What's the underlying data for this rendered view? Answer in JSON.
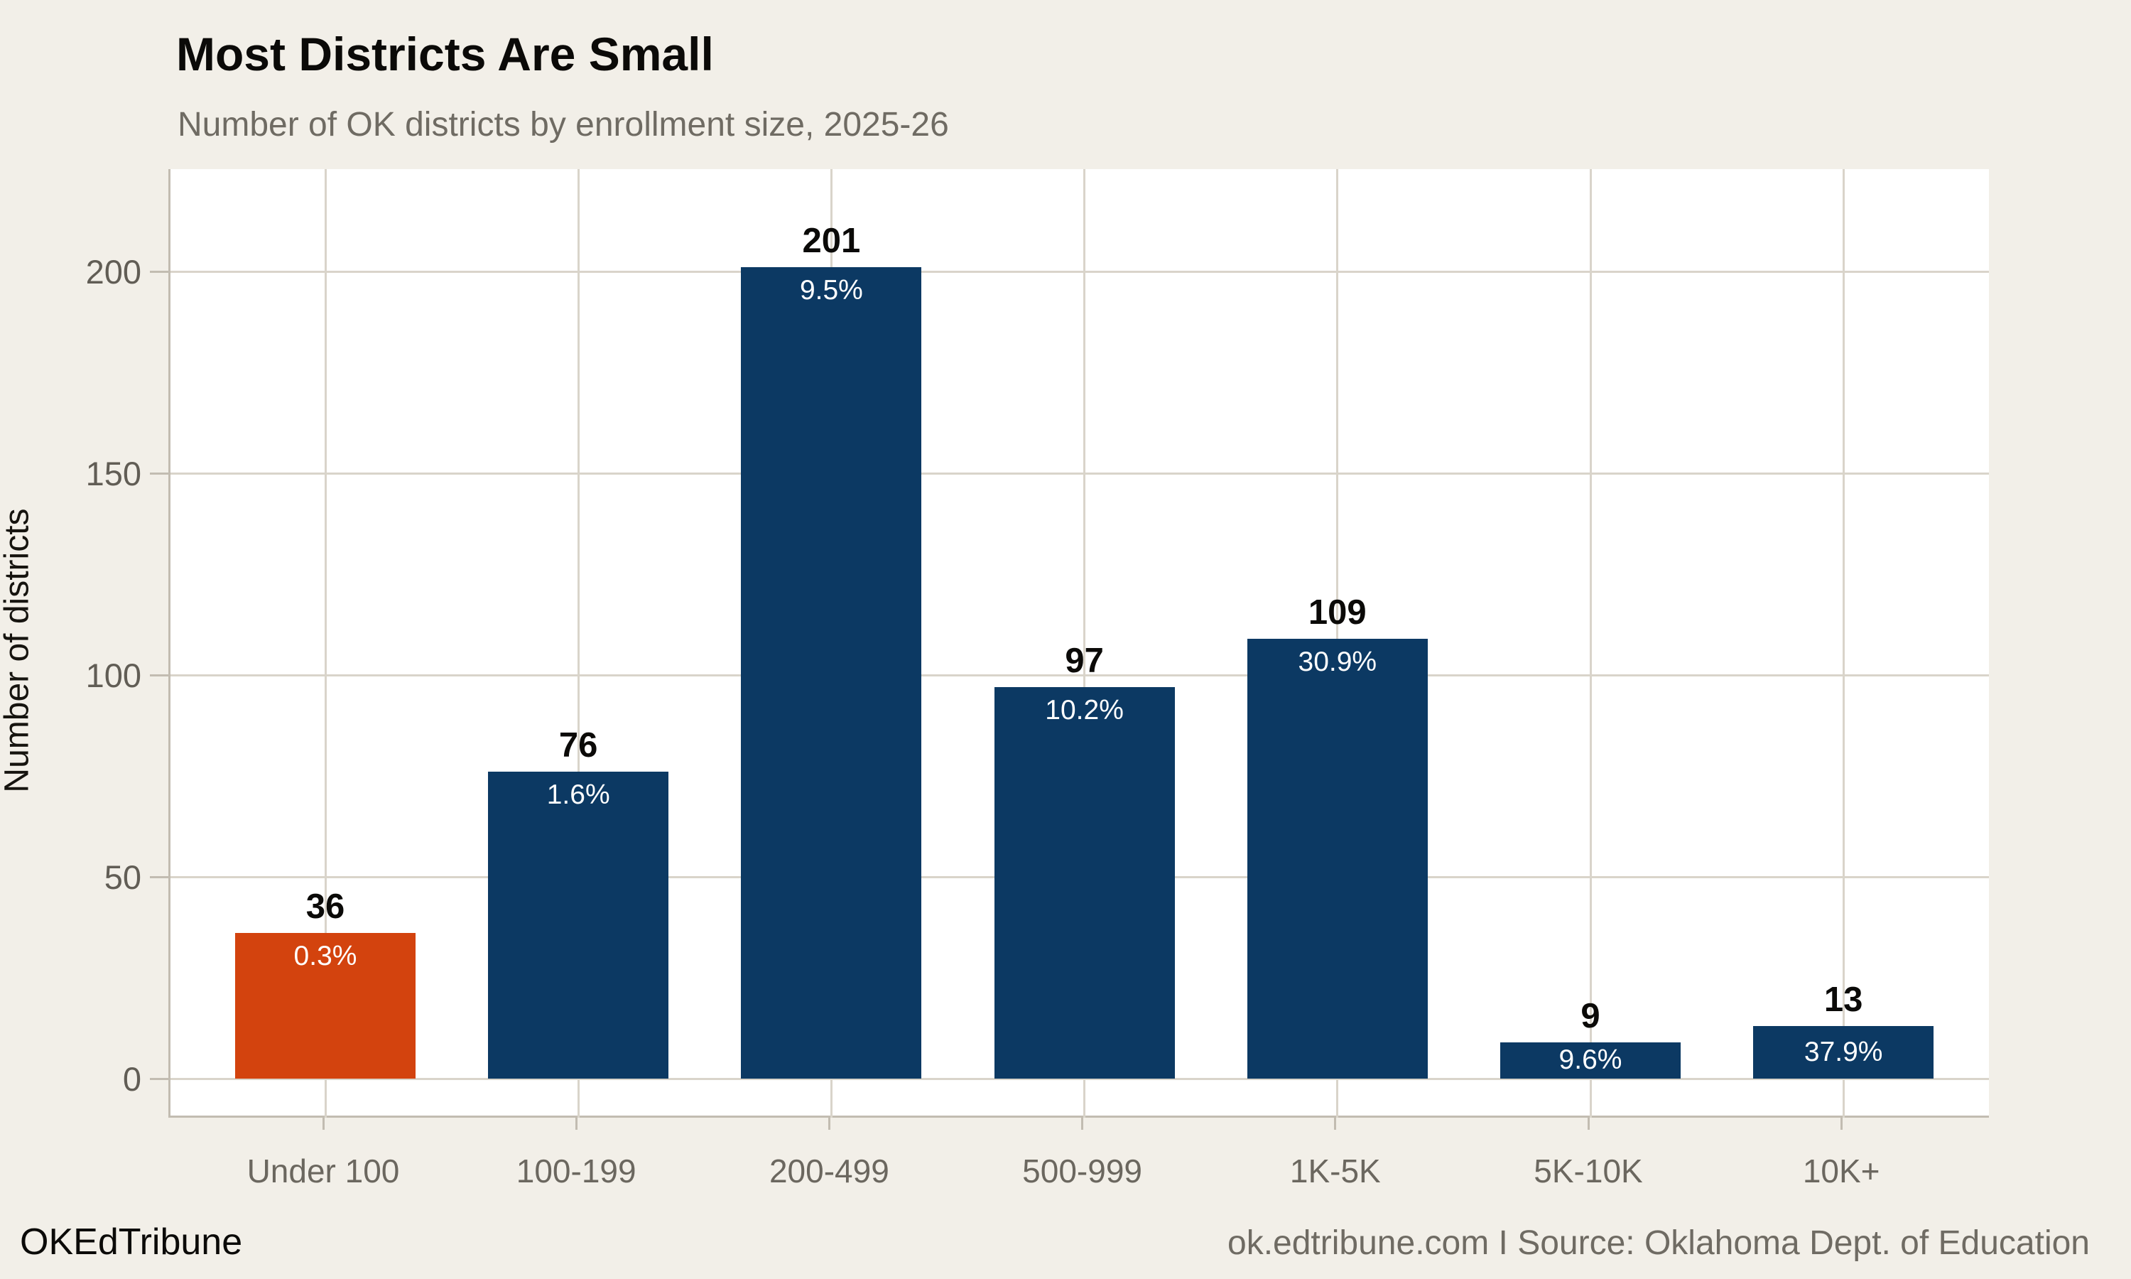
{
  "header": {
    "title": "Most Districts Are Small",
    "subtitle": "Number of OK districts by enrollment size, 2025-26"
  },
  "footer": {
    "brand": "OKEdTribune",
    "attribution": "ok.edtribune.com I Source: Oklahoma Dept. of Education"
  },
  "chart_data": {
    "type": "bar",
    "title": "Most Districts Are Small",
    "subtitle": "Number of OK districts by enrollment size, 2025-26",
    "xlabel": "",
    "ylabel": "Number of districts",
    "categories": [
      "Under 100",
      "100-199",
      "200-499",
      "500-999",
      "1K-5K",
      "5K-10K",
      "10K+"
    ],
    "values": [
      36,
      76,
      201,
      97,
      109,
      9,
      13
    ],
    "value_labels": [
      "36",
      "76",
      "201",
      "97",
      "109",
      "9",
      "13"
    ],
    "pct_labels": [
      "0.3%",
      "1.6%",
      "9.5%",
      "10.2%",
      "30.9%",
      "9.6%",
      "37.9%"
    ],
    "yticks": [
      0,
      50,
      100,
      150,
      200
    ],
    "ylim": [
      0,
      225
    ],
    "grid": true,
    "legend": "none",
    "highlight_index": 0,
    "colors": {
      "bar": "#0c3963",
      "highlight_bar": "#d3430e",
      "background": "#f2efe8",
      "plot_background": "#ffffff",
      "gridline": "#d9d4ca",
      "axis": "#c2bcb1",
      "tick_text": "#615d55",
      "value_text": "#0b0a08",
      "pct_text": "#ffffff"
    }
  }
}
